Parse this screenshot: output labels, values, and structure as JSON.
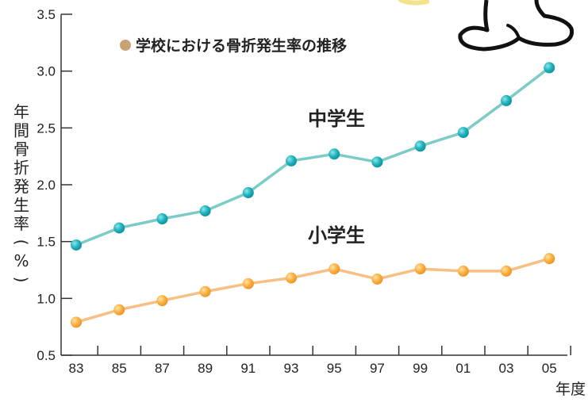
{
  "chart_data": {
    "type": "line",
    "title": "学校における骨折発生率の推移",
    "ylabel": "年間骨折発生率(%)",
    "xlabel": "年度",
    "categories": [
      "83",
      "85",
      "87",
      "89",
      "91",
      "93",
      "95",
      "97",
      "99",
      "01",
      "03",
      "05"
    ],
    "yticks": [
      "0.5",
      "1.0",
      "1.5",
      "2.0",
      "2.5",
      "3.0",
      "3.5"
    ],
    "ylim": [
      0.5,
      3.5
    ],
    "series": [
      {
        "name": "中学生",
        "values": [
          1.47,
          1.62,
          1.7,
          1.77,
          1.93,
          2.21,
          2.27,
          2.2,
          2.34,
          2.46,
          2.74,
          3.03
        ],
        "color": "#7ccbc6",
        "marker_color": "#1fb2bd"
      },
      {
        "name": "小学生",
        "values": [
          0.79,
          0.9,
          0.98,
          1.06,
          1.13,
          1.18,
          1.26,
          1.17,
          1.26,
          1.24,
          1.24,
          1.35
        ],
        "color": "#f8bf84",
        "marker_color": "#fbb040"
      }
    ],
    "legend_dot_color": "#c8a276",
    "grid": false
  }
}
